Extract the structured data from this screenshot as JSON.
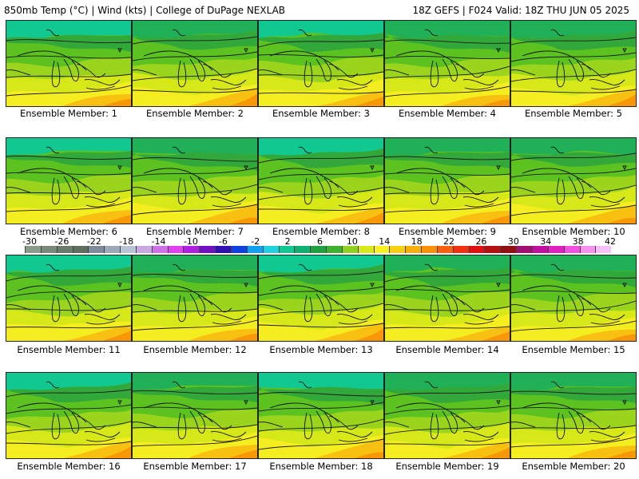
{
  "header": {
    "left": "850mb Temp (°C) | Wind (kts) | College of DuPage NEXLAB",
    "right": "18Z GEFS | F024 Valid: 18Z THU JUN 05 2025"
  },
  "members": [
    "Ensemble Member: 1",
    "Ensemble Member: 2",
    "Ensemble Member: 3",
    "Ensemble Member: 4",
    "Ensemble Member: 5",
    "Ensemble Member: 6",
    "Ensemble Member: 7",
    "Ensemble Member: 8",
    "Ensemble Member: 9",
    "Ensemble Member: 10",
    "Ensemble Member: 11",
    "Ensemble Member: 12",
    "Ensemble Member: 13",
    "Ensemble Member: 14",
    "Ensemble Member: 15",
    "Ensemble Member: 16",
    "Ensemble Member: 17",
    "Ensemble Member: 18",
    "Ensemble Member: 19",
    "Ensemble Member: 20"
  ],
  "colorbar": {
    "ticks": [
      "-30",
      "-26",
      "-22",
      "-18",
      "-14",
      "-10",
      "-6",
      "-2",
      "2",
      "6",
      "10",
      "14",
      "18",
      "22",
      "26",
      "30",
      "34",
      "38",
      "42"
    ],
    "colors": [
      "#8c9a8c",
      "#7a8a7a",
      "#6b7b6b",
      "#5f6e5f",
      "#808a98",
      "#9aa8b8",
      "#b8c4d4",
      "#c8a8e0",
      "#d070e8",
      "#e040f0",
      "#b020e0",
      "#7010c0",
      "#3010b0",
      "#1040e0",
      "#10a0f0",
      "#20d0e0",
      "#10c890",
      "#10b070",
      "#20a040",
      "#40b030",
      "#90d020",
      "#d8e818",
      "#f8f020",
      "#f8d010",
      "#f8b008",
      "#f89008",
      "#f86010",
      "#f03010",
      "#e01010",
      "#b81010",
      "#901010",
      "#a01070",
      "#c010a0",
      "#e020c0",
      "#f050e0",
      "#f890f0",
      "#f8c0f8"
    ]
  }
}
